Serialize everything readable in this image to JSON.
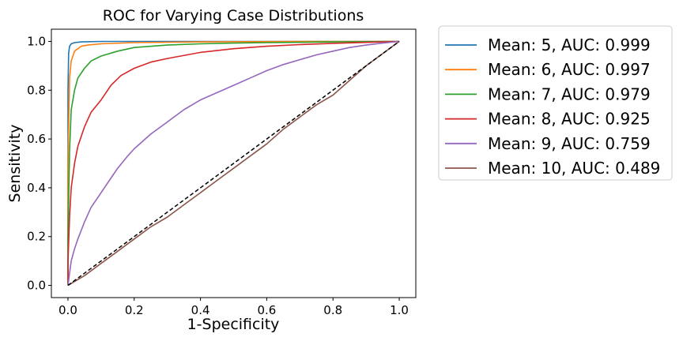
{
  "chart_data": {
    "type": "line",
    "title": "ROC for Varying Case Distributions",
    "xlabel": "1-Specificity",
    "ylabel": "Sensitivity",
    "xlim": [
      -0.05,
      1.05
    ],
    "ylim": [
      -0.05,
      1.05
    ],
    "xticks": [
      "0.0",
      "0.2",
      "0.4",
      "0.6",
      "0.8",
      "1.0"
    ],
    "yticks": [
      "0.0",
      "0.2",
      "0.4",
      "0.6",
      "0.8",
      "1.0"
    ],
    "grid": false,
    "legend_position": "outside-right",
    "reference_line": {
      "x": [
        0,
        1
      ],
      "y": [
        0,
        1
      ],
      "style": "dashed",
      "color": "#000000"
    },
    "series": [
      {
        "name": "Mean: 5, AUC: 0.999",
        "color": "#1f77b4",
        "x": [
          0,
          0.0,
          0.002,
          0.005,
          0.01,
          0.02,
          0.04,
          0.1,
          0.3,
          1.0
        ],
        "y": [
          0,
          0.8,
          0.95,
          0.98,
          0.99,
          0.995,
          0.998,
          1.0,
          1.0,
          1.0
        ]
      },
      {
        "name": "Mean: 6, AUC: 0.997",
        "color": "#ff7f0e",
        "x": [
          0,
          0.0,
          0.005,
          0.01,
          0.02,
          0.04,
          0.06,
          0.1,
          0.2,
          0.4,
          0.7,
          1.0
        ],
        "y": [
          0,
          0.5,
          0.85,
          0.92,
          0.96,
          0.98,
          0.985,
          0.99,
          0.995,
          0.998,
          1.0,
          1.0
        ]
      },
      {
        "name": "Mean: 7, AUC: 0.979",
        "color": "#2ca02c",
        "x": [
          0,
          0.0,
          0.005,
          0.01,
          0.02,
          0.03,
          0.05,
          0.07,
          0.1,
          0.15,
          0.2,
          0.3,
          0.4,
          0.5,
          0.6,
          0.8,
          1.0
        ],
        "y": [
          0,
          0.2,
          0.55,
          0.72,
          0.8,
          0.85,
          0.89,
          0.92,
          0.94,
          0.96,
          0.975,
          0.985,
          0.99,
          0.993,
          0.995,
          0.998,
          1.0
        ]
      },
      {
        "name": "Mean: 8, AUC: 0.925",
        "color": "#d62728",
        "x": [
          0,
          0.0,
          0.005,
          0.01,
          0.02,
          0.03,
          0.05,
          0.07,
          0.1,
          0.13,
          0.16,
          0.2,
          0.25,
          0.3,
          0.4,
          0.5,
          0.6,
          0.7,
          0.8,
          0.9,
          1.0
        ],
        "y": [
          0,
          0.1,
          0.28,
          0.4,
          0.5,
          0.57,
          0.65,
          0.71,
          0.76,
          0.82,
          0.86,
          0.89,
          0.915,
          0.93,
          0.955,
          0.97,
          0.98,
          0.987,
          0.992,
          0.996,
          1.0
        ]
      },
      {
        "name": "Mean: 9, AUC: 0.759",
        "color": "#9467bd",
        "x": [
          0,
          0.005,
          0.01,
          0.02,
          0.03,
          0.05,
          0.07,
          0.1,
          0.13,
          0.15,
          0.18,
          0.2,
          0.25,
          0.3,
          0.35,
          0.4,
          0.45,
          0.5,
          0.55,
          0.6,
          0.65,
          0.7,
          0.75,
          0.8,
          0.85,
          0.9,
          0.95,
          1.0
        ],
        "y": [
          0,
          0.05,
          0.1,
          0.15,
          0.19,
          0.26,
          0.32,
          0.38,
          0.44,
          0.48,
          0.53,
          0.56,
          0.62,
          0.67,
          0.72,
          0.76,
          0.79,
          0.82,
          0.85,
          0.88,
          0.905,
          0.925,
          0.945,
          0.96,
          0.975,
          0.985,
          0.993,
          1.0
        ]
      },
      {
        "name": "Mean: 10, AUC: 0.489",
        "color": "#8c564b",
        "x": [
          0,
          0.05,
          0.1,
          0.15,
          0.2,
          0.25,
          0.3,
          0.35,
          0.4,
          0.45,
          0.5,
          0.55,
          0.6,
          0.65,
          0.7,
          0.75,
          0.8,
          0.85,
          0.9,
          0.95,
          1.0
        ],
        "y": [
          0,
          0.04,
          0.09,
          0.14,
          0.19,
          0.24,
          0.28,
          0.33,
          0.38,
          0.43,
          0.48,
          0.53,
          0.58,
          0.64,
          0.69,
          0.74,
          0.78,
          0.84,
          0.9,
          0.95,
          1.0
        ]
      }
    ]
  }
}
